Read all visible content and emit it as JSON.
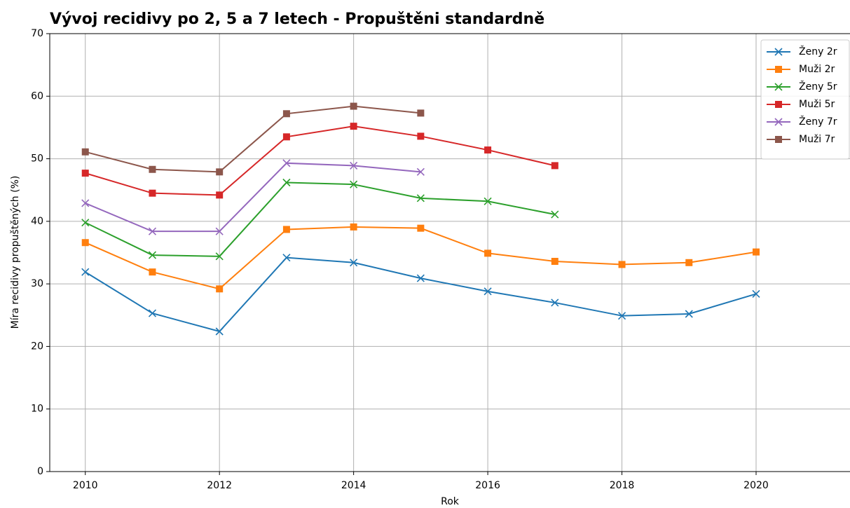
{
  "chart_data": {
    "type": "line",
    "title": "Vývoj recidivy po 2, 5 a 7 letech - Propuštěni standardně",
    "xlabel": "Rok",
    "ylabel": "Míra recidivy propuštěných (%)",
    "x": [
      2010,
      2011,
      2012,
      2013,
      2014,
      2015,
      2016,
      2017,
      2018,
      2019,
      2020
    ],
    "series": [
      {
        "name": "Ženy 2r",
        "color": "#1f77b4",
        "marker": "x",
        "values": [
          31.9,
          25.3,
          22.4,
          34.2,
          33.4,
          30.9,
          28.8,
          27.0,
          24.9,
          25.2,
          28.4
        ]
      },
      {
        "name": "Muži 2r",
        "color": "#ff7f0e",
        "marker": "s",
        "values": [
          36.6,
          31.9,
          29.2,
          38.7,
          39.1,
          38.9,
          34.9,
          33.6,
          33.1,
          33.4,
          35.1
        ]
      },
      {
        "name": "Ženy 5r",
        "color": "#2ca02c",
        "marker": "x",
        "values": [
          39.8,
          34.6,
          34.4,
          46.2,
          45.9,
          43.7,
          43.2,
          41.1,
          null,
          null,
          null
        ]
      },
      {
        "name": "Muži 5r",
        "color": "#d62728",
        "marker": "s",
        "values": [
          47.7,
          44.5,
          44.2,
          53.5,
          55.2,
          53.6,
          51.4,
          48.9,
          null,
          null,
          null
        ]
      },
      {
        "name": "Ženy 7r",
        "color": "#9467bd",
        "marker": "x",
        "values": [
          42.9,
          38.4,
          38.4,
          49.3,
          48.9,
          47.9,
          null,
          null,
          null,
          null,
          null
        ]
      },
      {
        "name": "Muži 7r",
        "color": "#8c564b",
        "marker": "s",
        "values": [
          51.1,
          48.3,
          47.9,
          57.2,
          58.4,
          57.3,
          null,
          null,
          null,
          null,
          null
        ]
      }
    ],
    "xlim": [
      2009.47,
      2021.4
    ],
    "xticks": [
      2010,
      2012,
      2014,
      2016,
      2018,
      2020
    ],
    "ylim": [
      0,
      70
    ],
    "yticks": [
      0,
      10,
      20,
      30,
      40,
      50,
      60,
      70
    ],
    "grid": true,
    "legend": "upper right"
  }
}
